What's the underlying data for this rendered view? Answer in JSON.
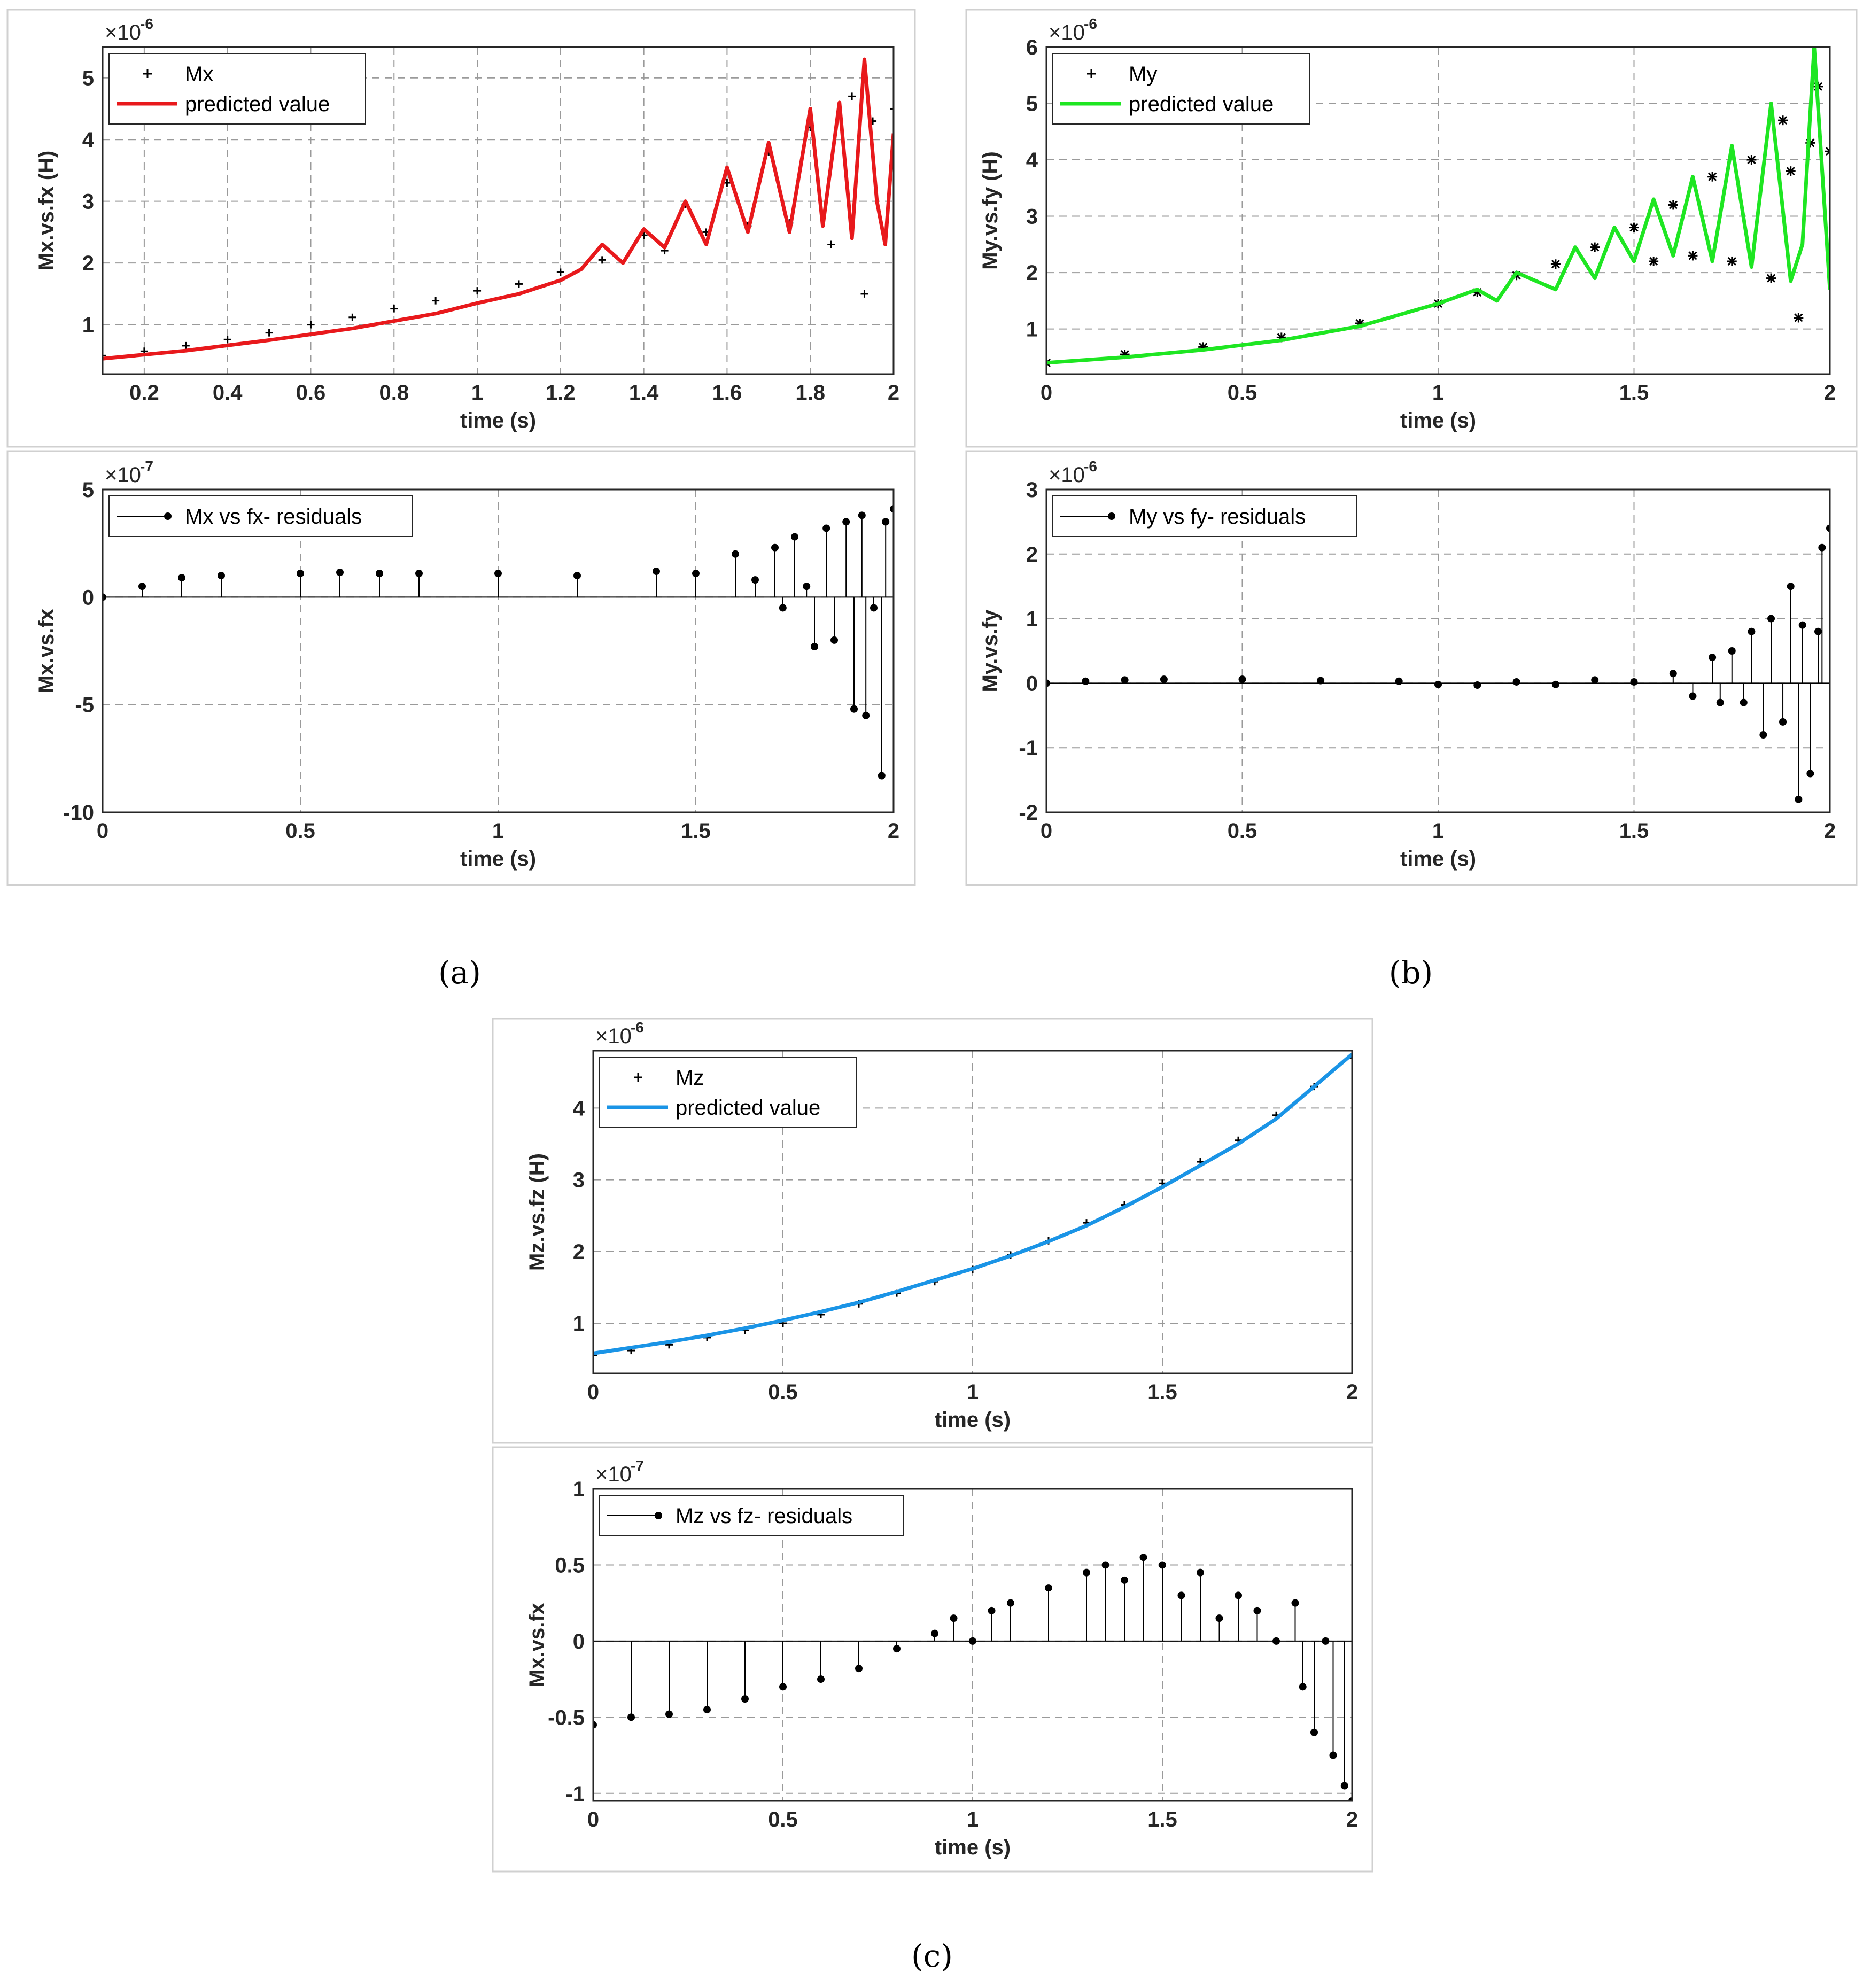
{
  "captions": {
    "a": "(a)",
    "b": "(b)",
    "c": "(c)"
  },
  "colors": {
    "mx_line": "#e8191c",
    "my_line": "#1ee622",
    "mz_line": "#1a94e6",
    "markers": "#000000",
    "grid": "#9a9a9a"
  },
  "chart_data": [
    {
      "id": "a_top",
      "type": "line",
      "panel": "a",
      "ylabel": "Mx.vs.fx (H)",
      "xlabel": "time (s)",
      "exponent": "-6",
      "xlim": [
        0.1,
        2.0
      ],
      "ylim": [
        0.2,
        5.5
      ],
      "xticks": [
        0.2,
        0.4,
        0.6,
        0.8,
        1.0,
        1.2,
        1.4,
        1.6,
        1.8,
        2.0
      ],
      "xtick_labels": [
        "0.2",
        "0.4",
        "0.6",
        "0.8",
        "1",
        "1.2",
        "1.4",
        "1.6",
        "1.8",
        "2"
      ],
      "yticks": [
        1,
        2,
        3,
        4,
        5
      ],
      "ytick_labels": [
        "1",
        "2",
        "3",
        "4",
        "5"
      ],
      "legend": [
        {
          "label": "Mx",
          "marker": "+"
        },
        {
          "label": "predicted value",
          "color": "#e8191c"
        }
      ],
      "legend_location": "top-left",
      "series": [
        {
          "name": "Mx",
          "style": "markers",
          "marker": "+",
          "x": [
            0.1,
            0.2,
            0.3,
            0.4,
            0.5,
            0.6,
            0.7,
            0.8,
            0.9,
            1.0,
            1.1,
            1.2,
            1.3,
            1.4,
            1.45,
            1.5,
            1.55,
            1.6,
            1.65,
            1.7,
            1.75,
            1.8,
            1.85,
            1.9,
            1.93,
            1.95,
            2.0
          ],
          "values": [
            0.5,
            0.57,
            0.66,
            0.76,
            0.87,
            1.0,
            1.12,
            1.26,
            1.39,
            1.55,
            1.66,
            1.85,
            2.05,
            2.45,
            2.2,
            2.95,
            2.5,
            3.3,
            2.6,
            3.8,
            2.65,
            4.2,
            2.3,
            4.7,
            1.5,
            4.3,
            4.5
          ]
        },
        {
          "name": "predicted value",
          "style": "line",
          "color": "#e8191c",
          "x": [
            0.1,
            0.3,
            0.5,
            0.7,
            0.9,
            1.0,
            1.1,
            1.2,
            1.25,
            1.3,
            1.35,
            1.4,
            1.45,
            1.5,
            1.55,
            1.6,
            1.65,
            1.7,
            1.75,
            1.8,
            1.83,
            1.87,
            1.9,
            1.93,
            1.96,
            1.98,
            2.0
          ],
          "values": [
            0.45,
            0.58,
            0.75,
            0.94,
            1.18,
            1.35,
            1.5,
            1.72,
            1.9,
            2.3,
            2.0,
            2.55,
            2.25,
            3.0,
            2.3,
            3.55,
            2.5,
            3.95,
            2.5,
            4.5,
            2.6,
            4.6,
            2.4,
            5.3,
            3.0,
            2.3,
            4.1
          ]
        }
      ]
    },
    {
      "id": "a_bottom",
      "type": "stem",
      "panel": "a",
      "ylabel": "Mx.vs.fx",
      "xlabel": "time (s)",
      "exponent": "-7",
      "xlim": [
        0,
        2
      ],
      "ylim": [
        -10,
        5
      ],
      "xticks": [
        0,
        0.5,
        1,
        1.5,
        2
      ],
      "xtick_labels": [
        "0",
        "0.5",
        "1",
        "1.5",
        "2"
      ],
      "yticks": [
        -10,
        -5,
        0,
        5
      ],
      "ytick_labels": [
        "-10",
        "-5",
        "0",
        "5"
      ],
      "legend": [
        {
          "label": "Mx vs fx- residuals"
        }
      ],
      "legend_location": "top-left",
      "series": [
        {
          "name": "Mx vs fx- residuals",
          "x": [
            0,
            0.1,
            0.2,
            0.3,
            0.5,
            0.6,
            0.7,
            0.8,
            1.0,
            1.2,
            1.4,
            1.5,
            1.6,
            1.65,
            1.7,
            1.72,
            1.75,
            1.78,
            1.8,
            1.83,
            1.85,
            1.88,
            1.9,
            1.92,
            1.93,
            1.95,
            1.97,
            1.98,
            2.0
          ],
          "values": [
            0,
            0.5,
            0.9,
            1.0,
            1.1,
            1.15,
            1.1,
            1.1,
            1.1,
            1.0,
            1.2,
            1.1,
            2.0,
            0.8,
            2.3,
            -0.5,
            2.8,
            0.5,
            -2.3,
            3.2,
            -2.0,
            3.5,
            -5.2,
            3.8,
            -5.5,
            -0.5,
            -8.3,
            3.5,
            4.1
          ]
        }
      ]
    },
    {
      "id": "b_top",
      "type": "line",
      "panel": "b",
      "ylabel": "My.vs.fy (H)",
      "xlabel": "time (s)",
      "exponent": "-6",
      "xlim": [
        0,
        2
      ],
      "ylim": [
        0.2,
        6.0
      ],
      "xticks": [
        0,
        0.5,
        1,
        1.5,
        2
      ],
      "xtick_labels": [
        "0",
        "0.5",
        "1",
        "1.5",
        "2"
      ],
      "yticks": [
        1,
        2,
        3,
        4,
        5,
        6
      ],
      "ytick_labels": [
        "1",
        "2",
        "3",
        "4",
        "5",
        "6"
      ],
      "legend": [
        {
          "label": "My",
          "marker": "*"
        },
        {
          "label": "predicted value",
          "color": "#1ee622"
        }
      ],
      "legend_location": "top-left",
      "series": [
        {
          "name": "My",
          "style": "markers",
          "marker": "*",
          "x": [
            0,
            0.2,
            0.4,
            0.6,
            0.8,
            1.0,
            1.1,
            1.2,
            1.3,
            1.4,
            1.5,
            1.55,
            1.6,
            1.65,
            1.7,
            1.75,
            1.8,
            1.85,
            1.88,
            1.9,
            1.92,
            1.95,
            1.97,
            2.0
          ],
          "values": [
            0.4,
            0.55,
            0.68,
            0.85,
            1.1,
            1.45,
            1.65,
            1.95,
            2.15,
            2.45,
            2.8,
            2.2,
            3.2,
            2.3,
            3.7,
            2.2,
            4.0,
            1.9,
            4.7,
            3.8,
            1.2,
            4.3,
            5.3,
            4.15
          ]
        },
        {
          "name": "predicted value",
          "style": "line",
          "color": "#1ee622",
          "x": [
            0,
            0.2,
            0.4,
            0.6,
            0.8,
            1.0,
            1.1,
            1.15,
            1.2,
            1.3,
            1.35,
            1.4,
            1.45,
            1.5,
            1.55,
            1.6,
            1.65,
            1.7,
            1.75,
            1.8,
            1.85,
            1.9,
            1.93,
            1.96,
            2.0
          ],
          "values": [
            0.4,
            0.5,
            0.63,
            0.8,
            1.05,
            1.45,
            1.7,
            1.5,
            2.0,
            1.7,
            2.45,
            1.9,
            2.8,
            2.2,
            3.3,
            2.3,
            3.7,
            2.2,
            4.25,
            2.1,
            5.0,
            1.85,
            2.5,
            6.0,
            1.7
          ]
        }
      ]
    },
    {
      "id": "b_bottom",
      "type": "stem",
      "panel": "b",
      "ylabel": "My.vs.fy",
      "xlabel": "time (s)",
      "exponent": "-6",
      "xlim": [
        0,
        2
      ],
      "ylim": [
        -2,
        3
      ],
      "xticks": [
        0,
        0.5,
        1,
        1.5,
        2
      ],
      "xtick_labels": [
        "0",
        "0.5",
        "1",
        "1.5",
        "2"
      ],
      "yticks": [
        -2,
        -1,
        0,
        1,
        2,
        3
      ],
      "ytick_labels": [
        "-2",
        "-1",
        "0",
        "1",
        "2",
        "3"
      ],
      "legend": [
        {
          "label": "My vs fy- residuals"
        }
      ],
      "legend_location": "top-left",
      "series": [
        {
          "name": "My vs fy- residuals",
          "x": [
            0,
            0.1,
            0.2,
            0.3,
            0.5,
            0.7,
            0.9,
            1.0,
            1.1,
            1.2,
            1.3,
            1.4,
            1.5,
            1.6,
            1.65,
            1.7,
            1.72,
            1.75,
            1.78,
            1.8,
            1.83,
            1.85,
            1.88,
            1.9,
            1.92,
            1.93,
            1.95,
            1.97,
            1.98,
            2.0
          ],
          "values": [
            0,
            0.03,
            0.05,
            0.06,
            0.06,
            0.04,
            0.03,
            -0.02,
            -0.03,
            0.02,
            -0.02,
            0.05,
            0.02,
            0.15,
            -0.2,
            0.4,
            -0.3,
            0.5,
            -0.3,
            0.8,
            -0.8,
            1.0,
            -0.6,
            1.5,
            -1.8,
            0.9,
            -1.4,
            0.8,
            2.1,
            2.4
          ]
        }
      ]
    },
    {
      "id": "c_top",
      "type": "line",
      "panel": "c",
      "ylabel": "Mz.vs.fz (H)",
      "xlabel": "time (s)",
      "exponent": "-6",
      "xlim": [
        0,
        2
      ],
      "ylim": [
        0.3,
        4.8
      ],
      "xticks": [
        0,
        0.5,
        1,
        1.5,
        2
      ],
      "xtick_labels": [
        "0",
        "0.5",
        "1",
        "1.5",
        "2"
      ],
      "yticks": [
        1,
        2,
        3,
        4
      ],
      "ytick_labels": [
        "1",
        "2",
        "3",
        "4"
      ],
      "legend": [
        {
          "label": "Mz",
          "marker": "+"
        },
        {
          "label": "predicted value",
          "color": "#1a94e6"
        }
      ],
      "legend_location": "top-left",
      "series": [
        {
          "name": "Mz",
          "style": "markers",
          "marker": "+",
          "x": [
            0,
            0.1,
            0.2,
            0.3,
            0.4,
            0.5,
            0.6,
            0.7,
            0.8,
            0.9,
            1.0,
            1.1,
            1.2,
            1.3,
            1.4,
            1.5,
            1.6,
            1.7,
            1.8,
            1.9,
            2.0
          ],
          "values": [
            0.55,
            0.62,
            0.7,
            0.8,
            0.9,
            1.0,
            1.12,
            1.27,
            1.42,
            1.58,
            1.75,
            1.95,
            2.15,
            2.4,
            2.65,
            2.95,
            3.25,
            3.55,
            3.9,
            4.3,
            4.7
          ]
        },
        {
          "name": "predicted value",
          "style": "line",
          "color": "#1a94e6",
          "x": [
            0,
            0.1,
            0.2,
            0.3,
            0.4,
            0.5,
            0.6,
            0.7,
            0.8,
            0.9,
            1.0,
            1.1,
            1.2,
            1.3,
            1.4,
            1.5,
            1.6,
            1.7,
            1.8,
            1.9,
            2.0
          ],
          "values": [
            0.58,
            0.66,
            0.74,
            0.83,
            0.93,
            1.04,
            1.16,
            1.29,
            1.44,
            1.6,
            1.76,
            1.94,
            2.14,
            2.36,
            2.62,
            2.9,
            3.2,
            3.5,
            3.85,
            4.3,
            4.75
          ]
        }
      ]
    },
    {
      "id": "c_bottom",
      "type": "stem",
      "panel": "c",
      "ylabel": "Mx.vs.fx",
      "xlabel": "time (s)",
      "exponent": "-7",
      "xlim": [
        0,
        2
      ],
      "ylim": [
        -1.05,
        1.0
      ],
      "xticks": [
        0,
        0.5,
        1,
        1.5,
        2
      ],
      "xtick_labels": [
        "0",
        "0.5",
        "1",
        "1.5",
        "2"
      ],
      "yticks": [
        -1,
        -0.5,
        0,
        0.5,
        1
      ],
      "ytick_labels": [
        "-1",
        "-0.5",
        "0",
        "0.5",
        "1"
      ],
      "legend": [
        {
          "label": "Mz vs fz- residuals"
        }
      ],
      "legend_location": "top-left",
      "series": [
        {
          "name": "Mz vs fz- residuals",
          "x": [
            0,
            0.1,
            0.2,
            0.3,
            0.4,
            0.5,
            0.6,
            0.7,
            0.8,
            0.9,
            0.95,
            1.0,
            1.05,
            1.1,
            1.2,
            1.3,
            1.35,
            1.4,
            1.45,
            1.5,
            1.55,
            1.6,
            1.65,
            1.7,
            1.75,
            1.8,
            1.85,
            1.87,
            1.9,
            1.93,
            1.95,
            1.98,
            2.0
          ],
          "values": [
            -0.55,
            -0.5,
            -0.48,
            -0.45,
            -0.38,
            -0.3,
            -0.25,
            -0.18,
            -0.05,
            0.05,
            0.15,
            0.0,
            0.2,
            0.25,
            0.35,
            0.45,
            0.5,
            0.4,
            0.55,
            0.5,
            0.3,
            0.45,
            0.15,
            0.3,
            0.2,
            0.0,
            0.25,
            -0.3,
            -0.6,
            0.0,
            -0.75,
            -0.95,
            -1.05
          ]
        }
      ]
    }
  ]
}
